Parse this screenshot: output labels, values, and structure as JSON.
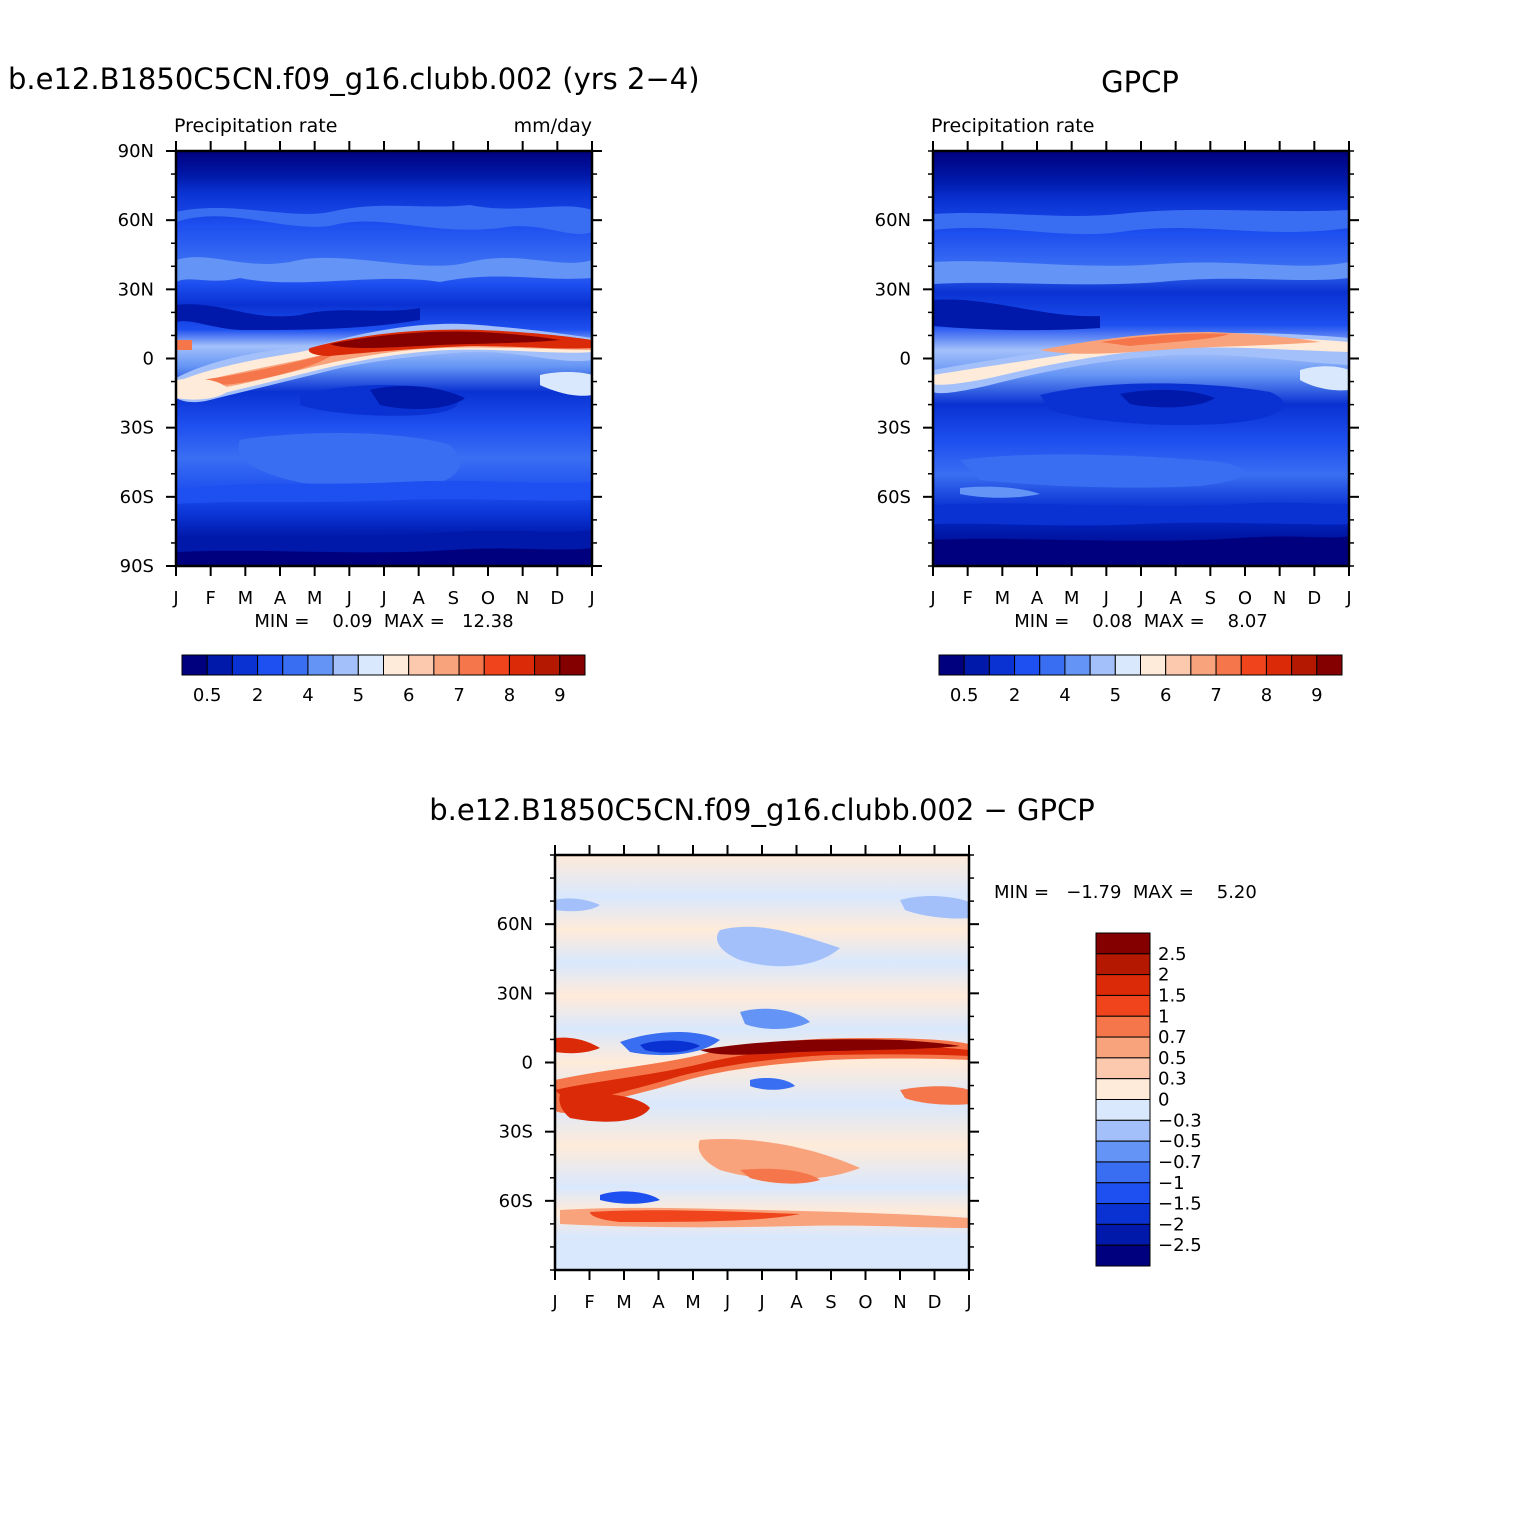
{
  "colors": {
    "precip_scale": [
      "#00007f",
      "#0019aa",
      "#0a32d2",
      "#1e4ff0",
      "#3a6ef2",
      "#6494f5",
      "#a3c0fa",
      "#d9e8fd",
      "#ffebd9",
      "#fcc9ae",
      "#f9a37c",
      "#f5764a",
      "#f0441c",
      "#db2a08",
      "#b51800",
      "#840000"
    ],
    "diff_scale": [
      "#00007f",
      "#0019aa",
      "#0a32d2",
      "#1e4ff0",
      "#3a6ef2",
      "#6494f5",
      "#a3c0fa",
      "#d9e8fd",
      "#ffebd9",
      "#fcc9ae",
      "#f9a37c",
      "#f5764a",
      "#f0441c",
      "#db2a08",
      "#b51800",
      "#840000"
    ]
  },
  "chart_data": [
    {
      "type": "heatmap",
      "title": "b.e12.B1850C5CN.f09_g16.clubb.002 (yrs 2−4)",
      "subtitle_left": "Precipitation rate",
      "subtitle_right": "mm/day",
      "x_ticks": [
        "J",
        "F",
        "M",
        "A",
        "M",
        "J",
        "J",
        "A",
        "S",
        "O",
        "N",
        "D",
        "J"
      ],
      "y_ticks": [
        "90N",
        "60N",
        "30N",
        "0",
        "30S",
        "60S",
        "90S"
      ],
      "y_tick_values": [
        90,
        60,
        30,
        0,
        -30,
        -60,
        -90
      ],
      "ylim": [
        -90,
        90
      ],
      "stats_text": "MIN =    0.09  MAX =   12.38",
      "min": 0.09,
      "max": 12.38,
      "colorbar_labels": [
        "0.5",
        "2",
        "4",
        "5",
        "6",
        "7",
        "8",
        "9"
      ]
    },
    {
      "type": "heatmap",
      "title": "GPCP",
      "subtitle_left": "Precipitation rate",
      "x_ticks": [
        "J",
        "F",
        "M",
        "A",
        "M",
        "J",
        "J",
        "A",
        "S",
        "O",
        "N",
        "D",
        "J"
      ],
      "y_ticks": [
        "60N",
        "30N",
        "0",
        "30S",
        "60S"
      ],
      "y_tick_values": [
        60,
        30,
        0,
        -30,
        -60
      ],
      "ylim": [
        -90,
        90
      ],
      "stats_text": "MIN =    0.08  MAX =    8.07",
      "min": 0.08,
      "max": 8.07,
      "colorbar_labels": [
        "0.5",
        "2",
        "4",
        "5",
        "6",
        "7",
        "8",
        "9"
      ]
    },
    {
      "type": "heatmap",
      "title": "b.e12.B1850C5CN.f09_g16.clubb.002 − GPCP",
      "x_ticks": [
        "J",
        "F",
        "M",
        "A",
        "M",
        "J",
        "J",
        "A",
        "S",
        "O",
        "N",
        "D",
        "J"
      ],
      "y_ticks": [
        "60N",
        "30N",
        "0",
        "30S",
        "60S"
      ],
      "y_tick_values": [
        60,
        30,
        0,
        -30,
        -60
      ],
      "ylim": [
        -90,
        90
      ],
      "stats_text": "MIN =   −1.79  MAX =    5.20",
      "min": -1.79,
      "max": 5.2,
      "colorbar_labels": [
        "2.5",
        "2",
        "1.5",
        "1",
        "0.7",
        "0.5",
        "0.3",
        "0",
        "−0.3",
        "−0.5",
        "−0.7",
        "−1",
        "−1.5",
        "−2",
        "−2.5"
      ]
    }
  ]
}
